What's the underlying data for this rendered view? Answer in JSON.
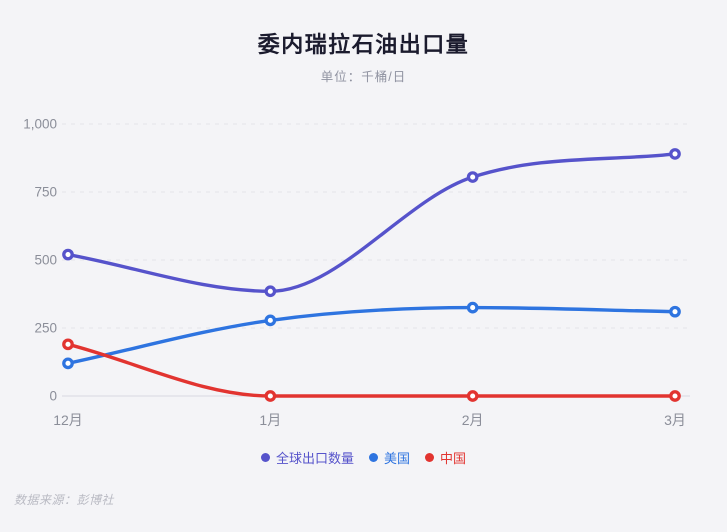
{
  "title": "委内瑞拉石油出口量",
  "subtitle": "单位：千桶/日",
  "source": "数据来源：彭博社",
  "colors": {
    "background": "#f4f4f7",
    "title": "#1b1b2e",
    "subtitle": "#8f92a0",
    "axis_label": "#8b8e99",
    "gridline": "#e6e6ec",
    "zero_line": "#dedee5",
    "source": "#b9bac3",
    "marker_fill": "#ffffff"
  },
  "chart_data": {
    "type": "line",
    "categories": [
      "12月",
      "1月",
      "2月",
      "3月"
    ],
    "series": [
      {
        "name": "全球出口数量",
        "color": "#5653cb",
        "values": [
          520,
          385,
          805,
          890
        ]
      },
      {
        "name": "美国",
        "color": "#2e74e0",
        "values": [
          120,
          278,
          325,
          310
        ]
      },
      {
        "name": "中国",
        "color": "#e23430",
        "values": [
          190,
          0,
          0,
          0
        ]
      }
    ],
    "yticks": [
      {
        "value": 0,
        "label": "0"
      },
      {
        "value": 250,
        "label": "250"
      },
      {
        "value": 500,
        "label": "500"
      },
      {
        "value": 750,
        "label": "750"
      },
      {
        "value": 1000,
        "label": "1,000"
      }
    ],
    "ylim": [
      0,
      1000
    ],
    "xlabel": "",
    "ylabel": "",
    "grid": "horizontal-dashed",
    "curve": "monotone",
    "legend_position": "bottom"
  }
}
